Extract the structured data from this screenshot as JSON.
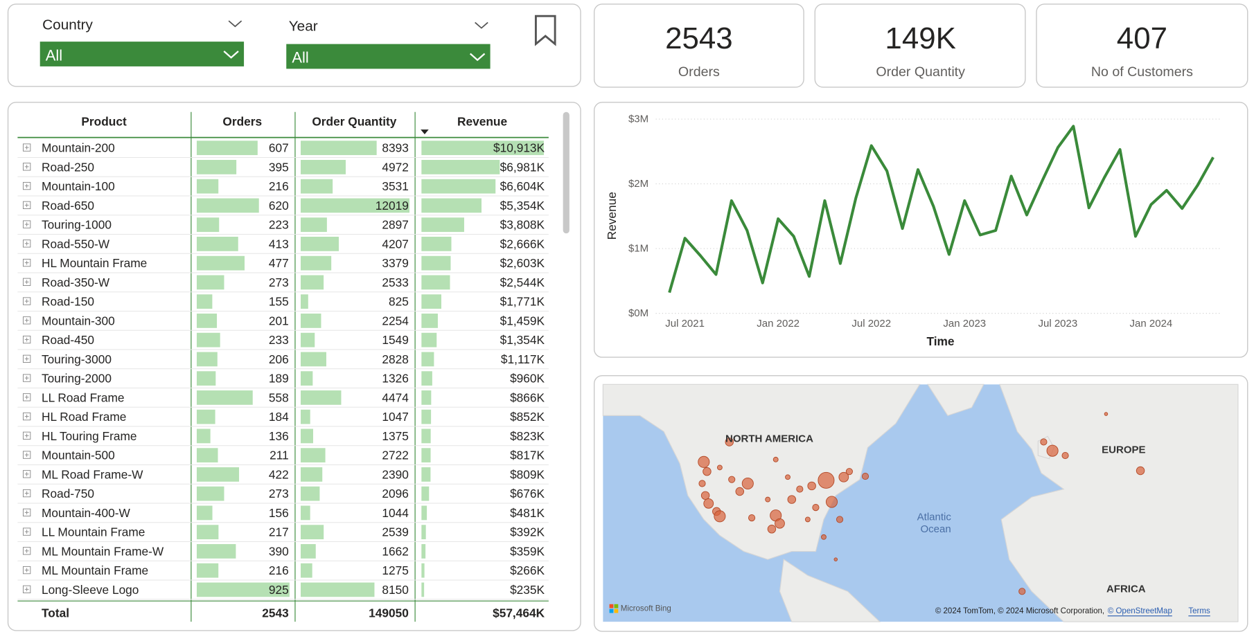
{
  "filters": [
    {
      "label": "Country",
      "value": "All"
    },
    {
      "label": "Year",
      "value": "All"
    }
  ],
  "kpis": [
    {
      "value": "2543",
      "label": "Orders"
    },
    {
      "value": "149K",
      "label": "Order Quantity"
    },
    {
      "value": "407",
      "label": "No of Customers"
    }
  ],
  "table": {
    "headers": [
      "Product",
      "Orders",
      "Order Quantity",
      "Revenue"
    ],
    "rows": [
      {
        "product": "Mountain-200",
        "orders": 607,
        "quantity": 8393,
        "revenue": 10913,
        "revenue_label": "$10,913K"
      },
      {
        "product": "Road-250",
        "orders": 395,
        "quantity": 4972,
        "revenue": 6981,
        "revenue_label": "$6,981K"
      },
      {
        "product": "Mountain-100",
        "orders": 216,
        "quantity": 3531,
        "revenue": 6604,
        "revenue_label": "$6,604K"
      },
      {
        "product": "Road-650",
        "orders": 620,
        "quantity": 12019,
        "revenue": 5354,
        "revenue_label": "$5,354K"
      },
      {
        "product": "Touring-1000",
        "orders": 223,
        "quantity": 2897,
        "revenue": 3808,
        "revenue_label": "$3,808K"
      },
      {
        "product": "Road-550-W",
        "orders": 413,
        "quantity": 4207,
        "revenue": 2666,
        "revenue_label": "$2,666K"
      },
      {
        "product": "HL Mountain Frame",
        "orders": 477,
        "quantity": 3379,
        "revenue": 2603,
        "revenue_label": "$2,603K"
      },
      {
        "product": "Road-350-W",
        "orders": 273,
        "quantity": 2533,
        "revenue": 2544,
        "revenue_label": "$2,544K"
      },
      {
        "product": "Road-150",
        "orders": 155,
        "quantity": 825,
        "revenue": 1771,
        "revenue_label": "$1,771K"
      },
      {
        "product": "Mountain-300",
        "orders": 201,
        "quantity": 2254,
        "revenue": 1459,
        "revenue_label": "$1,459K"
      },
      {
        "product": "Road-450",
        "orders": 233,
        "quantity": 1549,
        "revenue": 1354,
        "revenue_label": "$1,354K"
      },
      {
        "product": "Touring-3000",
        "orders": 206,
        "quantity": 2828,
        "revenue": 1117,
        "revenue_label": "$1,117K"
      },
      {
        "product": "Touring-2000",
        "orders": 189,
        "quantity": 1326,
        "revenue": 960,
        "revenue_label": "$960K"
      },
      {
        "product": "LL Road Frame",
        "orders": 558,
        "quantity": 4474,
        "revenue": 866,
        "revenue_label": "$866K"
      },
      {
        "product": "HL Road Frame",
        "orders": 184,
        "quantity": 1047,
        "revenue": 852,
        "revenue_label": "$852K"
      },
      {
        "product": "HL Touring Frame",
        "orders": 136,
        "quantity": 1375,
        "revenue": 823,
        "revenue_label": "$823K"
      },
      {
        "product": "Mountain-500",
        "orders": 211,
        "quantity": 2722,
        "revenue": 817,
        "revenue_label": "$817K"
      },
      {
        "product": "ML Road Frame-W",
        "orders": 422,
        "quantity": 2390,
        "revenue": 809,
        "revenue_label": "$809K"
      },
      {
        "product": "Road-750",
        "orders": 273,
        "quantity": 2096,
        "revenue": 676,
        "revenue_label": "$676K"
      },
      {
        "product": "Mountain-400-W",
        "orders": 156,
        "quantity": 1044,
        "revenue": 481,
        "revenue_label": "$481K"
      },
      {
        "product": "LL Mountain Frame",
        "orders": 217,
        "quantity": 2539,
        "revenue": 392,
        "revenue_label": "$392K"
      },
      {
        "product": "ML Mountain Frame-W",
        "orders": 390,
        "quantity": 1662,
        "revenue": 359,
        "revenue_label": "$359K"
      },
      {
        "product": "ML Mountain Frame",
        "orders": 216,
        "quantity": 1275,
        "revenue": 266,
        "revenue_label": "$266K"
      },
      {
        "product": "Long-Sleeve Logo",
        "orders": 925,
        "quantity": 8150,
        "revenue": 235,
        "revenue_label": "$235K"
      }
    ],
    "total": {
      "label": "Total",
      "orders": 2543,
      "quantity": 149050,
      "revenue": 57464,
      "revenue_label": "$57,464K"
    }
  },
  "line_chart": {
    "type": "line",
    "x_label": "Time",
    "y_label": "Revenue",
    "color": "#3a8a3a",
    "x": [
      "2021-06",
      "2021-07",
      "2021-08",
      "2021-09",
      "2021-10",
      "2021-11",
      "2021-12",
      "2022-01",
      "2022-02",
      "2022-03",
      "2022-04",
      "2022-05",
      "2022-06",
      "2022-07",
      "2022-08",
      "2022-09",
      "2022-10",
      "2022-11",
      "2022-12",
      "2023-01",
      "2023-02",
      "2023-03",
      "2023-04",
      "2023-05",
      "2023-06",
      "2023-07",
      "2023-08",
      "2023-09",
      "2023-10",
      "2023-11",
      "2023-12",
      "2024-01",
      "2024-02",
      "2024-03",
      "2024-04",
      "2024-05"
    ],
    "values": [
      0.32,
      1.16,
      0.89,
      0.6,
      1.74,
      1.28,
      0.47,
      1.46,
      1.19,
      0.57,
      1.74,
      0.77,
      1.78,
      2.59,
      2.2,
      1.31,
      2.22,
      1.65,
      0.91,
      1.74,
      1.21,
      1.28,
      2.12,
      1.52,
      2.05,
      2.56,
      2.89,
      1.63,
      2.1,
      2.53,
      1.19,
      1.68,
      1.9,
      1.62,
      1.98,
      2.41
    ],
    "ylim": [
      0,
      3
    ],
    "yticks": [
      {
        "value": 0,
        "label": "$0M"
      },
      {
        "value": 1,
        "label": "$1M"
      },
      {
        "value": 2,
        "label": "$2M"
      },
      {
        "value": 3,
        "label": "$3M"
      }
    ],
    "xticks": [
      {
        "value": "2021-07",
        "label": "Jul 2021"
      },
      {
        "value": "2022-01",
        "label": "Jan 2022"
      },
      {
        "value": "2022-07",
        "label": "Jul 2022"
      },
      {
        "value": "2023-01",
        "label": "Jan 2023"
      },
      {
        "value": "2023-07",
        "label": "Jul 2023"
      },
      {
        "value": "2024-01",
        "label": "Jan 2024"
      }
    ],
    "grid": true
  },
  "map": {
    "labels": [
      "NORTH AMERICA",
      "EUROPE",
      "AFRICA"
    ],
    "ocean": [
      "Atlantic",
      "Ocean"
    ],
    "attribution": "Microsoft Bing",
    "copyright": "© 2024 TomTom, © 2024 Microsoft Corporation,",
    "osm": "© OpenStreetMap",
    "terms": "Terms"
  }
}
